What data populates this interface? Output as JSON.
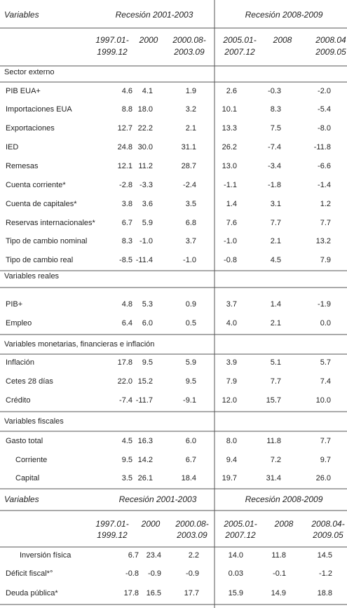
{
  "header": {
    "variables": "Variables",
    "group1": "Recesión 2001-2003",
    "group2": "Recesión 2008-2009",
    "columns": [
      [
        "1997.01-",
        "1999.12"
      ],
      [
        "2000"
      ],
      [
        "2000.08-",
        "2003.09"
      ],
      [
        "2005.01-",
        "2007.12"
      ],
      [
        "2008"
      ],
      [
        "2008.04",
        "2009.05"
      ]
    ]
  },
  "sections": [
    {
      "title": "Sector externo",
      "rows": [
        {
          "label": "PIB EUA+",
          "values": [
            "4.6",
            "4.1",
            "1.9",
            "2.6",
            "-0.3",
            "-2.0"
          ]
        },
        {
          "label": "Importaciones EUA",
          "values": [
            "8.8",
            "18.0",
            "3.2",
            "10.1",
            "8.3",
            "-5.4"
          ]
        },
        {
          "label": "Exportaciones",
          "values": [
            "12.7",
            "22.2",
            "2.1",
            "13.3",
            "7.5",
            "-8.0"
          ]
        },
        {
          "label": "IED",
          "values": [
            "24.8",
            "30.0",
            "31.1",
            "26.2",
            "-7.4",
            "-11.8"
          ]
        },
        {
          "label": "Remesas",
          "values": [
            "12.1",
            "11.2",
            "28.7",
            "13.0",
            "-3.4",
            "-6.6"
          ]
        },
        {
          "label": "Cuenta corriente*",
          "values": [
            "-2.8",
            "-3.3",
            "-2.4",
            "-1.1",
            "-1.8",
            "-1.4"
          ]
        },
        {
          "label": "Cuenta de capitales*",
          "values": [
            "3.8",
            "3.6",
            "3.5",
            "1.4",
            "3.1",
            "1.2"
          ]
        },
        {
          "label": "Reservas internacionales*",
          "values": [
            "6.7",
            "5.9",
            "6.8",
            "7.6",
            "7.7",
            "7.7"
          ]
        },
        {
          "label": "Tipo de cambio nominal",
          "values": [
            "8.3",
            "-1.0",
            "3.7",
            "-1.0",
            "2.1",
            "13.2"
          ]
        },
        {
          "label": "Tipo de cambio real",
          "values": [
            "-8.5",
            "-11.4",
            "-1.0",
            "-0.8",
            "4.5",
            "7.9"
          ]
        }
      ]
    },
    {
      "title": "Variables reales",
      "rows": [
        {
          "label": "PIB+",
          "values": [
            "4.8",
            "5.3",
            "0.9",
            "3.7",
            "1.4",
            "-1.9"
          ]
        },
        {
          "label": "Empleo",
          "values": [
            "6.4",
            "6.0",
            "0.5",
            "4.0",
            "2.1",
            "0.0"
          ]
        }
      ]
    },
    {
      "title": "Variables monetarias, financieras  e inflación",
      "rows": [
        {
          "label": "Inflación",
          "values": [
            "17.8",
            "9.5",
            "5.9",
            "3.9",
            "5.1",
            "5.7"
          ]
        },
        {
          "label": "Cetes 28 días",
          "values": [
            "22.0",
            "15.2",
            "9.5",
            "7.9",
            "7.7",
            "7.4"
          ]
        },
        {
          "label": "Crédito",
          "values": [
            "-7.4",
            "-11.7",
            "-9.1",
            "12.0",
            "15.7",
            "10.0"
          ]
        }
      ]
    },
    {
      "title": "Variables fiscales",
      "rows": [
        {
          "label": "Gasto total",
          "values": [
            "4.5",
            "16.3",
            "6.0",
            "8.0",
            "11.8",
            "7.7"
          ]
        },
        {
          "label": "Corriente",
          "values": [
            "9.5",
            "14.2",
            "6.7",
            "9.4",
            "7.2",
            "9.7"
          ]
        },
        {
          "label": "Capital",
          "values": [
            "3.5",
            "26.1",
            "18.4",
            "19.7",
            "31.4",
            "26.0"
          ]
        }
      ]
    }
  ],
  "header2": {
    "variables": "Variables",
    "group1": "Recesión 2001-2003",
    "group2": "Recesión 2008-2009",
    "columns": [
      [
        "1997.01-",
        "1999.12"
      ],
      [
        "2000"
      ],
      [
        "2000.08-",
        "2003.09"
      ],
      [
        "2005.01-",
        "2007.12"
      ],
      [
        "2008"
      ],
      [
        "2008.04-",
        "2009.05"
      ]
    ]
  },
  "rows2": [
    {
      "label": "Inversión física",
      "values": [
        "6.7",
        "23.4",
        "2.2",
        "14.0",
        "11.8",
        "14.5"
      ]
    },
    {
      "label": "Déficit fiscal*°",
      "values": [
        "-0.8",
        "-0.9",
        "-0.9",
        "0.03",
        "-0.1",
        "-1.2"
      ]
    },
    {
      "label": "Deuda pública*",
      "values": [
        "17.8",
        "16.5",
        "17.7",
        "15.9",
        "14.9",
        "18.8"
      ]
    }
  ]
}
